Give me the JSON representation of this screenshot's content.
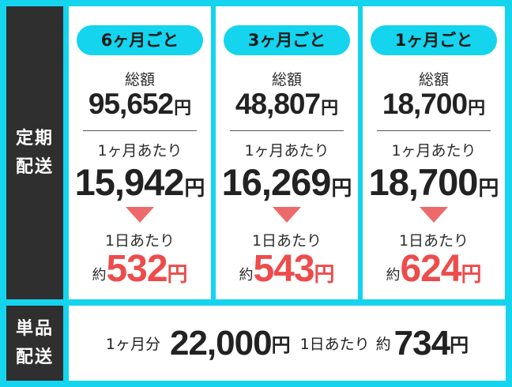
{
  "subscription": {
    "label_line1": "定期",
    "label_line2": "配送",
    "plans": [
      {
        "badge": "6ヶ月ごと",
        "total_label": "総額",
        "total": "95,652",
        "monthly_label": "1ヶ月あたり",
        "monthly": "15,942",
        "daily_label": "1日あたり",
        "approx": "約",
        "daily": "532"
      },
      {
        "badge": "3ヶ月ごと",
        "total_label": "総額",
        "total": "48,807",
        "monthly_label": "1ヶ月あたり",
        "monthly": "16,269",
        "daily_label": "1日あたり",
        "approx": "約",
        "daily": "543"
      },
      {
        "badge": "1ヶ月ごと",
        "total_label": "総額",
        "total": "18,700",
        "monthly_label": "1ヶ月あたり",
        "monthly": "18,700",
        "daily_label": "1日あたり",
        "approx": "約",
        "daily": "624"
      }
    ],
    "currency": "円"
  },
  "single": {
    "label_line1": "単品",
    "label_line2": "配送",
    "month_label": "1ヶ月分",
    "price": "22,000",
    "daily_label": "1日あたり",
    "approx": "約",
    "daily": "734",
    "currency": "円"
  },
  "colors": {
    "accent": "#14d4ee",
    "dark": "#2f2f2f",
    "highlight": "#ee4b4b",
    "arrow": "#ee6a6a"
  }
}
